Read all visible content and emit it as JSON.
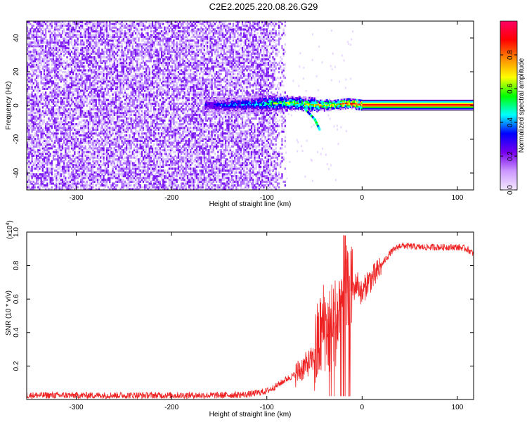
{
  "title": "C2E2.2025.220.08.26.G29",
  "chart_data": [
    {
      "type": "heatmap",
      "xlabel": "Height of straight line (km)",
      "ylabel": "Frequency (Hz)",
      "xlim": [
        -352,
        117
      ],
      "ylim": [
        -50,
        50
      ],
      "x_ticks": [
        -300,
        -200,
        -100,
        0,
        100
      ],
      "y_ticks": [
        -40,
        -20,
        0,
        20,
        40
      ],
      "grid": false,
      "colorbar": {
        "label": "Normalized spectral amplitude",
        "range": [
          0,
          1
        ],
        "ticks": [
          0.0,
          0.2,
          0.4,
          0.6,
          0.8
        ],
        "colormap": [
          "#f4e8ff",
          "#cc99ff",
          "#7700ee",
          "#0000ff",
          "#00ffff",
          "#00ff00",
          "#ffff00",
          "#ff8800",
          "#ff0000",
          "#ff0066"
        ]
      },
      "noise_region": {
        "x_range": [
          -352,
          -100
        ],
        "freq_range": [
          -50,
          50
        ],
        "amplitude": 0.12
      },
      "signal_track": [
        {
          "x": -165,
          "freq": 0.0,
          "width": 4,
          "amplitude": 0.3
        },
        {
          "x": -140,
          "freq": 0.0,
          "width": 5,
          "amplitude": 0.35
        },
        {
          "x": -115,
          "freq": 0.5,
          "width": 5,
          "amplitude": 0.4
        },
        {
          "x": -90,
          "freq": 1.0,
          "width": 5,
          "amplitude": 0.55
        },
        {
          "x": -70,
          "freq": 1.0,
          "width": 4,
          "amplitude": 0.6
        },
        {
          "x": -50,
          "freq": 0.0,
          "width": 4,
          "amplitude": 0.65
        },
        {
          "x": -30,
          "freq": 0.0,
          "width": 3,
          "amplitude": 0.7
        },
        {
          "x": -15,
          "freq": 1.0,
          "width": 3,
          "amplitude": 0.8
        },
        {
          "x": 0,
          "freq": 0.0,
          "width": 3,
          "amplitude": 0.95
        },
        {
          "x": 50,
          "freq": 0.0,
          "width": 3,
          "amplitude": 1.0
        },
        {
          "x": 117,
          "freq": 0.0,
          "width": 3,
          "amplitude": 1.0
        }
      ],
      "signal_branch": [
        {
          "x": -60,
          "freq": -2
        },
        {
          "x": -50,
          "freq": -8
        },
        {
          "x": -45,
          "freq": -14
        }
      ]
    },
    {
      "type": "line",
      "xlabel": "Height of straight line (km)",
      "ylabel": "SNR (10 * v/v)",
      "y_multiplier": "(x10",
      "y_multiplier_exp": "4",
      "y_multiplier_close": ")",
      "xlim": [
        -352,
        117
      ],
      "ylim": [
        0,
        1.0
      ],
      "x_ticks": [
        -300,
        -200,
        -100,
        0,
        100
      ],
      "y_ticks": [
        0.2,
        0.4,
        0.6,
        0.8,
        1.0
      ],
      "grid": false,
      "series": [
        {
          "color": "#ee2222",
          "x": [
            -352,
            -300,
            -250,
            -200,
            -150,
            -120,
            -100,
            -90,
            -80,
            -70,
            -60,
            -50,
            -45,
            -40,
            -35,
            -30,
            -25,
            -20,
            -18,
            -15,
            -10,
            -5,
            0,
            5,
            10,
            15,
            20,
            30,
            40,
            60,
            80,
            100,
            110,
            117
          ],
          "y": [
            0.025,
            0.025,
            0.025,
            0.025,
            0.025,
            0.03,
            0.05,
            0.08,
            0.12,
            0.15,
            0.2,
            0.25,
            0.35,
            0.45,
            0.4,
            0.45,
            0.5,
            0.65,
            0.7,
            0.6,
            0.65,
            0.7,
            0.62,
            0.7,
            0.72,
            0.75,
            0.8,
            0.88,
            0.92,
            0.91,
            0.91,
            0.91,
            0.9,
            0.87
          ],
          "noise": 0.02
        }
      ]
    }
  ]
}
